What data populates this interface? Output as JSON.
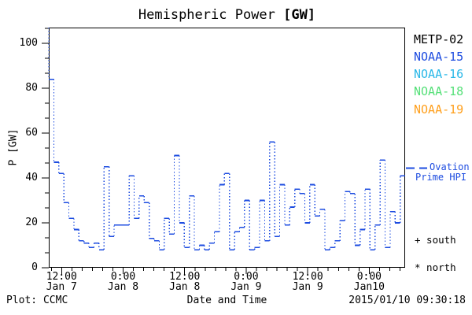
{
  "title": {
    "main": "Hemispheric Power",
    "unit": "[GW]"
  },
  "y_axis": {
    "label": "P [GW]",
    "ticks": [
      0,
      20,
      40,
      60,
      80,
      100
    ]
  },
  "x_axis": {
    "label": "Date and Time",
    "ticks": [
      {
        "time": "12:00",
        "date": "Jan 7"
      },
      {
        "time": "0:00",
        "date": "Jan 8"
      },
      {
        "time": "12:00",
        "date": "Jan 8"
      },
      {
        "time": "0:00",
        "date": "Jan 9"
      },
      {
        "time": "12:00",
        "date": "Jan 9"
      },
      {
        "time": "0:00",
        "date": "Jan10"
      }
    ]
  },
  "legend": {
    "satellites": [
      {
        "label": "METP-02",
        "color": "#000000"
      },
      {
        "label": "NOAA-15",
        "color": "#1d4ce0"
      },
      {
        "label": "NOAA-16",
        "color": "#2ab8e8"
      },
      {
        "label": "NOAA-18",
        "color": "#55e078"
      },
      {
        "label": "NOAA-19",
        "color": "#ffa01e"
      }
    ],
    "model_line": {
      "label_line1": "Ovation",
      "label_line2": "Prime HPI",
      "color": "#1d4ce0"
    },
    "south_marker": "+ south",
    "north_marker": "* north"
  },
  "footer": {
    "credit": "Plot: CCMC",
    "generated": "2015/01/10 09:30:18"
  },
  "chart_data": {
    "type": "line",
    "subtype": "step",
    "title": "Hemispheric Power [GW]",
    "xlabel": "Date and Time",
    "ylabel": "P [GW]",
    "ylim": [
      0,
      107
    ],
    "grid": false,
    "y_major_ticks": [
      0,
      20,
      40,
      60,
      80,
      100
    ],
    "x_total_hours": 69.5,
    "x_major_tick_hours": [
      2.5,
      14.5,
      26.5,
      38.5,
      50.5,
      62.5
    ],
    "x_major_tick_labels": [
      "12:00 Jan 7",
      "0:00 Jan 8",
      "12:00 Jan 8",
      "0:00 Jan 9",
      "12:00 Jan 9",
      "0:00 Jan10"
    ],
    "x_minor_tick_every_hours": 2,
    "series": [
      {
        "name": "Ovation Prime HPI",
        "color": "#1d4ce0",
        "line_style": "dotted-step",
        "lead_in_value": 107,
        "interval_hours": 1,
        "values": [
          84,
          47,
          42,
          29,
          22,
          17,
          12,
          11,
          9,
          11,
          8,
          45,
          14,
          19,
          19,
          19,
          41,
          22,
          32,
          29,
          13,
          12,
          8,
          22,
          15,
          50,
          20,
          9,
          32,
          8,
          10,
          8,
          11,
          16,
          37,
          42,
          8,
          16,
          18,
          30,
          8,
          9,
          30,
          12,
          56,
          14,
          37,
          19,
          27,
          35,
          33,
          20,
          37,
          23,
          26,
          8,
          9,
          12,
          21,
          34,
          33,
          10,
          17,
          35,
          8,
          19,
          48,
          9,
          25,
          20,
          41
        ]
      }
    ]
  }
}
